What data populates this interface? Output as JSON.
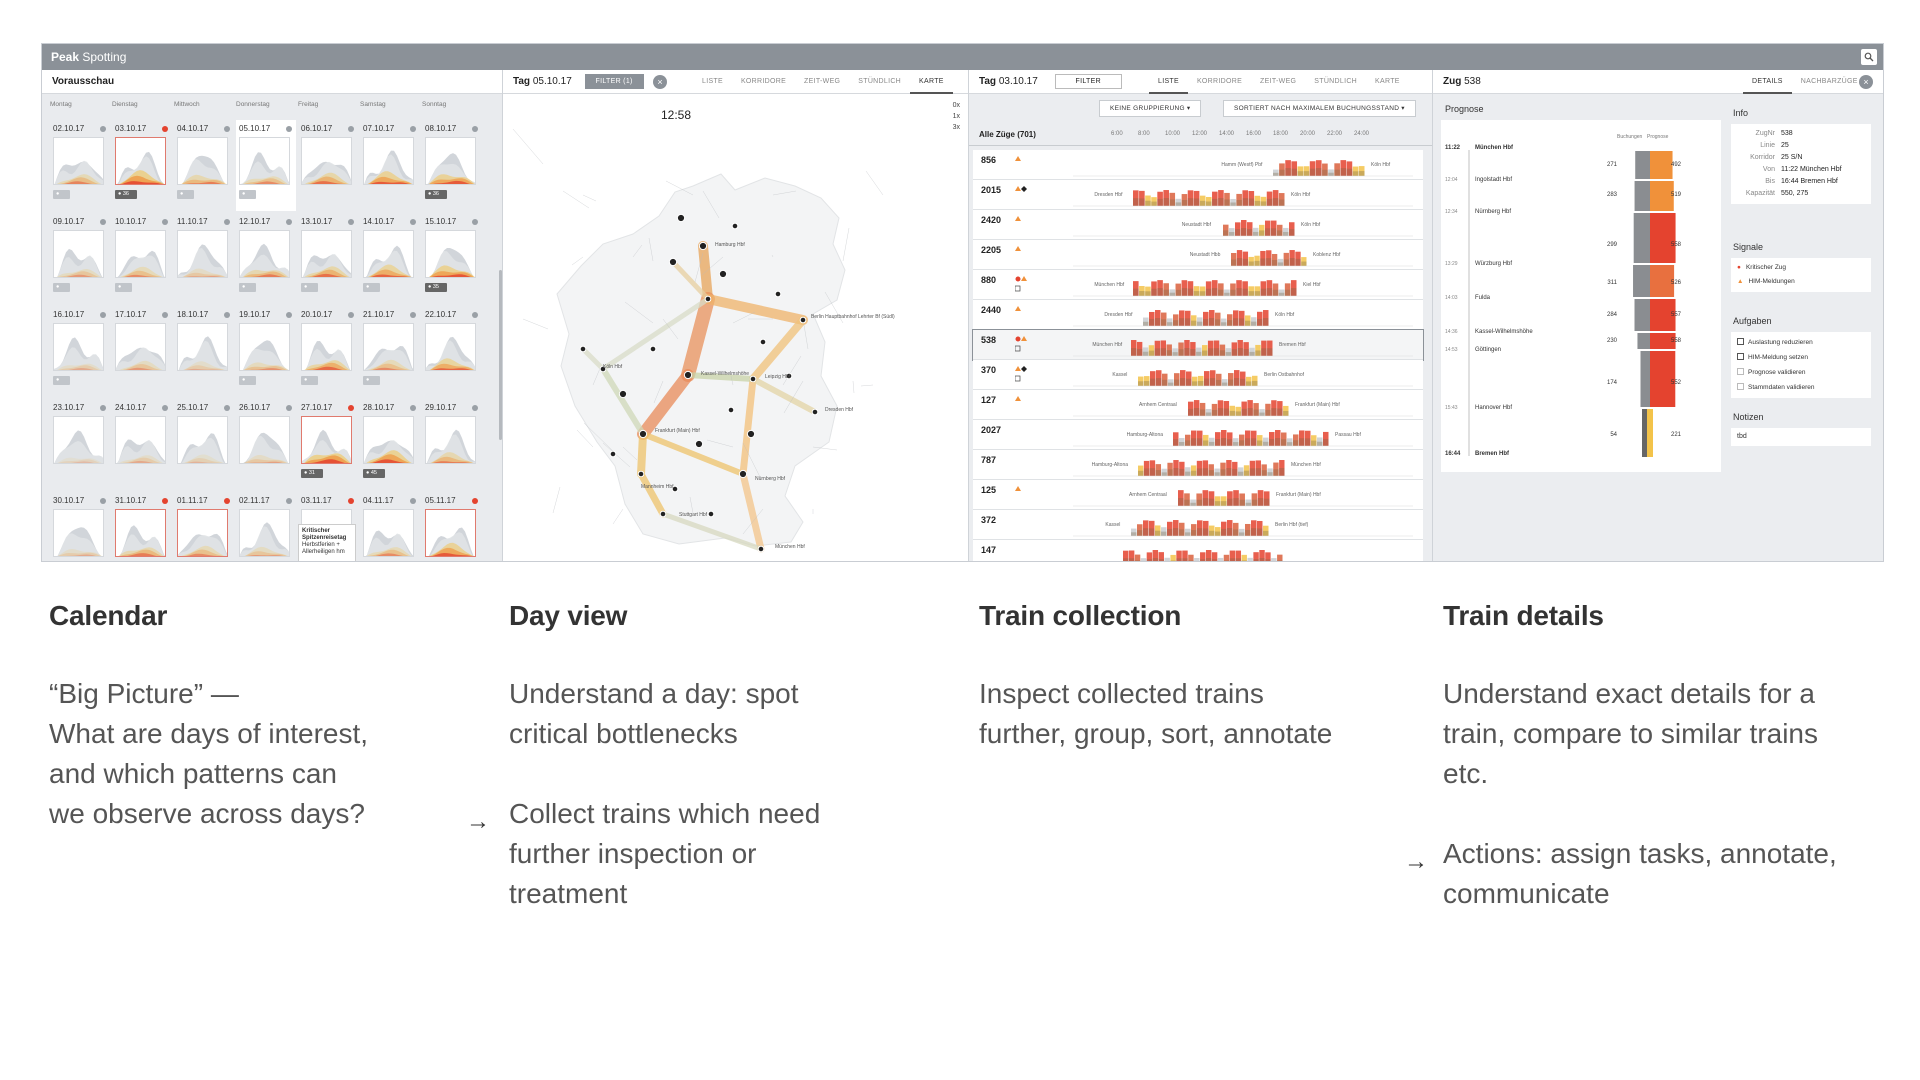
{
  "app": {
    "brand": "Peak",
    "title": "Spotting"
  },
  "calendar": {
    "title": "Vorausschau",
    "weekdays": [
      "Montag",
      "Dienstag",
      "Mittwoch",
      "Donnerstag",
      "Freitag",
      "Samstag",
      "Sonntag"
    ],
    "dates": [
      "02.10.17",
      "03.10.17",
      "04.10.17",
      "05.10.17",
      "06.10.17",
      "07.10.17",
      "08.10.17",
      "09.10.17",
      "10.10.17",
      "11.10.17",
      "12.10.17",
      "13.10.17",
      "14.10.17",
      "15.10.17",
      "16.10.17",
      "17.10.17",
      "18.10.17",
      "19.10.17",
      "20.10.17",
      "21.10.17",
      "22.10.17",
      "23.10.17",
      "24.10.17",
      "25.10.17",
      "26.10.17",
      "27.10.17",
      "28.10.17",
      "29.10.17",
      "30.10.17",
      "31.10.17",
      "01.11.17",
      "02.11.17",
      "03.11.17",
      "04.11.17",
      "05.11.17"
    ],
    "tooltip": {
      "title": "Kritischer Spitzenreisetag",
      "text": "Herbstferien + Allerheiligen hm"
    }
  },
  "dayview": {
    "title_bold": "Tag",
    "date": "05.10.17",
    "filter": "FILTER (1)",
    "tabs": [
      "LISTE",
      "KORRIDORE",
      "ZEIT-WEG",
      "STÜNDLICH",
      "KARTE"
    ],
    "time": "12:58",
    "zoom": [
      "0x",
      "1x",
      "3x"
    ],
    "cities": [
      "Hamburg Hbf",
      "Berlin Hauptbahnhof Lehrter Bf (Südl)",
      "Köln Hbf",
      "Kassel-Wilhelmshöhe",
      "Leipzig Hbf",
      "Dresden Hbf",
      "Frankfurt (Main) Hbf",
      "Mannheim Hbf",
      "Stuttgart Hbf",
      "Nürnberg Hbf",
      "München Hbf"
    ]
  },
  "collection": {
    "title_bold": "Tag",
    "date": "03.10.17",
    "filter": "FILTER",
    "tabs": [
      "LISTE",
      "KORRIDORE",
      "ZEIT-WEG",
      "STÜNDLICH",
      "KARTE"
    ],
    "group_btn": "KEINE GRUPPIERUNG",
    "sort_btn": "SORTIERT NACH MAXIMALEM BUCHUNGSSTAND",
    "list_label": "Alle Züge (701)",
    "hours": [
      "6:00",
      "8:00",
      "10:00",
      "12:00",
      "14:00",
      "16:00",
      "18:00",
      "20:00",
      "22:00",
      "24:00"
    ],
    "trains": [
      {
        "num": "856",
        "from": "Hamm (Westf) Pbf",
        "to": "Köln Hbf"
      },
      {
        "num": "2015",
        "from": "Dresden Hbf",
        "to": "Köln Hbf"
      },
      {
        "num": "2420",
        "from": "Neustadt Hbf",
        "to": "Köln Hbf"
      },
      {
        "num": "2205",
        "from": "Neustadt Hbb",
        "to": "Koblenz Hbf"
      },
      {
        "num": "880",
        "from": "München Hbf",
        "to": "Kiel Hbf"
      },
      {
        "num": "2440",
        "from": "Dresden Hbf",
        "to": "Köln Hbf"
      },
      {
        "num": "538",
        "from": "München Hbf",
        "to": "Bremen Hbf"
      },
      {
        "num": "370",
        "from": "Kassel",
        "to": "Berlin Ostbahnhof"
      },
      {
        "num": "127",
        "from": "Arnhem Centraal",
        "to": "Frankfurt (Main) Hbf"
      },
      {
        "num": "2027",
        "from": "Hamburg-Altona",
        "to": "Passau Hbf"
      },
      {
        "num": "787",
        "from": "Hamburg-Altona",
        "to": "München Hbf"
      },
      {
        "num": "125",
        "from": "Arnhem Centraal",
        "to": "Frankfurt (Main) Hbf"
      },
      {
        "num": "372",
        "from": "Kassel",
        "to": "Berlin Hbf (tief)"
      },
      {
        "num": "147",
        "from": "",
        "to": ""
      }
    ]
  },
  "details": {
    "title_bold": "Zug",
    "train": "538",
    "tabs": [
      "DETAILS",
      "NACHBARZÜGE"
    ],
    "prognose_label": "Prognose",
    "col_labels": [
      "Buchungen",
      "Prognose"
    ],
    "stops": [
      {
        "time": "11:22",
        "name": "München Hbf",
        "bold": true,
        "book": "271",
        "prog": "492"
      },
      {
        "time": "12:04",
        "name": "Ingolstadt Hbf",
        "bold": false,
        "book": "283",
        "prog": "519"
      },
      {
        "time": "12:34",
        "name": "Nürnberg Hbf",
        "bold": false,
        "book": "",
        "prog": ""
      },
      {
        "time": "13:29",
        "name": "Würzburg Hbf",
        "bold": false,
        "book": "299",
        "prog": "558"
      },
      {
        "time": "14:03",
        "name": "Fulda",
        "bold": false,
        "book": "311",
        "prog": "526"
      },
      {
        "time": "14:36",
        "name": "Kassel-Wilhelmshöhe",
        "bold": false,
        "book": "284",
        "prog": "557"
      },
      {
        "time": "14:53",
        "name": "Göttingen",
        "bold": false,
        "book": "230",
        "prog": "558"
      },
      {
        "time": "15:43",
        "name": "Hannover Hbf",
        "bold": false,
        "book": "174",
        "prog": "552"
      },
      {
        "time": "16:44",
        "name": "Bremen Hbf",
        "bold": true,
        "book": "54",
        "prog": "221"
      }
    ],
    "info_label": "Info",
    "info": [
      {
        "k": "ZugNr",
        "v": "538"
      },
      {
        "k": "Linie",
        "v": "25"
      },
      {
        "k": "Korridor",
        "v": "25 S/N"
      },
      {
        "k": "Von",
        "v": "11:22 München Hbf"
      },
      {
        "k": "Bis",
        "v": "16:44 Bremen Hbf"
      },
      {
        "k": "Kapazität",
        "v": "550, 275"
      }
    ],
    "signals_label": "Signale",
    "signals": [
      "Kritischer Zug",
      "HIM-Meldungen"
    ],
    "tasks_label": "Aufgaben",
    "tasks": [
      "Auslastung reduzieren",
      "HIM-Meldung setzen",
      "Prognose validieren",
      "Stammdaten validieren"
    ],
    "notes_label": "Notizen",
    "notes": "tbd"
  },
  "captions": [
    {
      "title": "Calendar",
      "lines": [
        "“Big Picture” —",
        "What are days of interest,",
        "and which patterns can",
        "we observe across days?"
      ]
    },
    {
      "title": "Day view",
      "lines": [
        "Understand a day: spot",
        "critical bottlenecks"
      ],
      "arrow_lines": [
        "Collect trains which need",
        "further inspection or",
        "treatment"
      ]
    },
    {
      "title": "Train collection",
      "lines": [
        "Inspect collected trains",
        "further, group, sort, annotate"
      ]
    },
    {
      "title": "Train details",
      "lines": [
        "Understand exact details for a",
        "train, compare to similar trains",
        "etc."
      ],
      "arrow_lines": [
        "Actions: assign tasks, annotate,",
        "communicate"
      ]
    }
  ],
  "colors": {
    "red": "#e4432f",
    "orange": "#f0913a",
    "yellow": "#f3c34a",
    "grey": "#c9ccd0",
    "dark": "#555a60"
  }
}
